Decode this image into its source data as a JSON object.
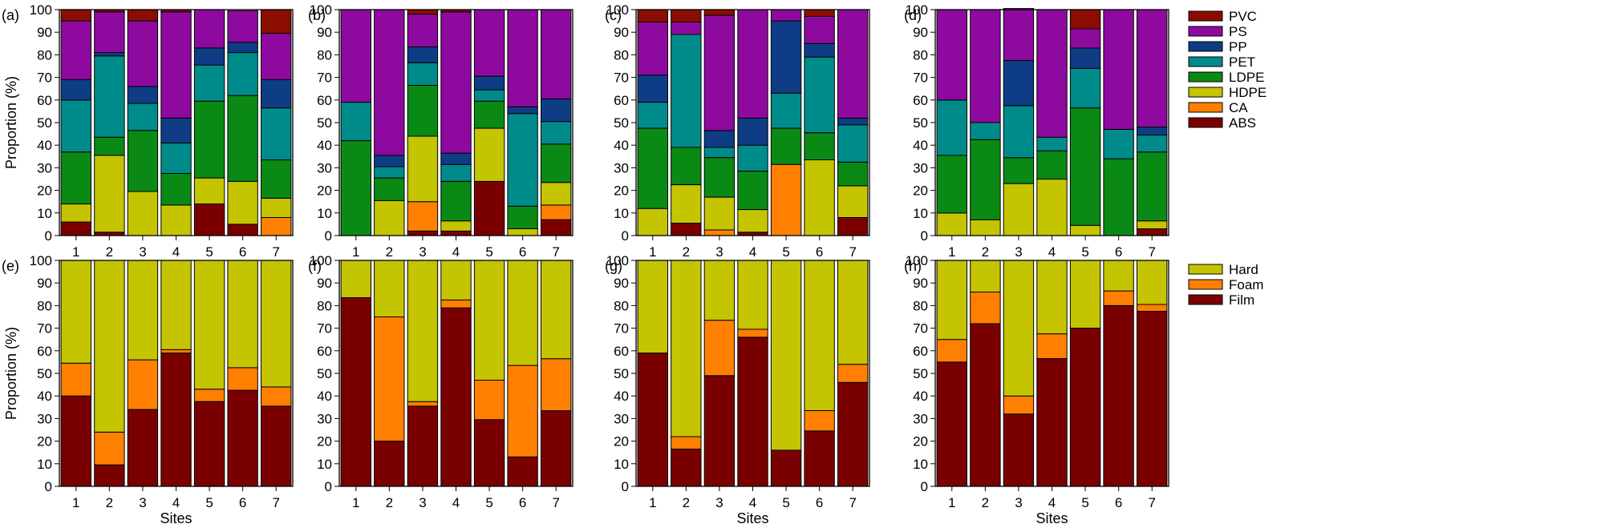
{
  "colors": {
    "PVC": "#8b0d00",
    "PS": "#8e0a9e",
    "PP": "#0f3d85",
    "PET": "#008b8b",
    "LDPE": "#0a8a14",
    "HDPE": "#c4c400",
    "CA": "#ff8000",
    "ABS": "#7a0000",
    "Hard": "#c4c400",
    "Foam": "#ff8000",
    "Film": "#7a0000"
  },
  "chart_data": [
    {
      "panel": "(a)",
      "type": "bar",
      "stacked": true,
      "categories": [
        "1",
        "2",
        "3",
        "4",
        "5",
        "6",
        "7"
      ],
      "xlabel": "",
      "ylabel": "Proportion (%)",
      "ylim": [
        0,
        100
      ],
      "yticks": [
        "0",
        "10",
        "20",
        "30",
        "40",
        "50",
        "60",
        "70",
        "80",
        "90",
        "100"
      ],
      "series": [
        {
          "name": "ABS",
          "values": [
            6,
            1.5,
            0,
            0,
            14,
            5,
            0
          ]
        },
        {
          "name": "CA",
          "values": [
            0,
            0,
            0,
            0,
            0,
            0,
            8
          ]
        },
        {
          "name": "HDPE",
          "values": [
            8,
            34,
            19.5,
            13.5,
            11.5,
            19,
            8.5
          ]
        },
        {
          "name": "LDPE",
          "values": [
            23,
            8,
            27,
            14,
            34,
            38,
            17
          ]
        },
        {
          "name": "PET",
          "values": [
            23,
            36,
            12,
            13.5,
            16,
            19,
            23
          ]
        },
        {
          "name": "PP",
          "values": [
            9,
            1.5,
            7.5,
            11,
            7.5,
            4.5,
            12.5
          ]
        },
        {
          "name": "PS",
          "values": [
            26,
            18,
            29,
            47,
            17,
            14,
            20.5
          ]
        },
        {
          "name": "PVC",
          "values": [
            5,
            1,
            5,
            1,
            0,
            0,
            10.5
          ]
        }
      ]
    },
    {
      "panel": "(b)",
      "type": "bar",
      "stacked": true,
      "categories": [
        "1",
        "2",
        "3",
        "4",
        "5",
        "6",
        "7"
      ],
      "xlabel": "",
      "ylabel": "",
      "ylim": [
        0,
        100
      ],
      "yticks": [
        "0",
        "10",
        "20",
        "30",
        "40",
        "50",
        "60",
        "70",
        "80",
        "90",
        "100"
      ],
      "series": [
        {
          "name": "ABS",
          "values": [
            0,
            0,
            2,
            2,
            24,
            0,
            7
          ]
        },
        {
          "name": "CA",
          "values": [
            0,
            0,
            13,
            0,
            0,
            0,
            6.5
          ]
        },
        {
          "name": "HDPE",
          "values": [
            0,
            15.5,
            29,
            4.5,
            23.5,
            3,
            10
          ]
        },
        {
          "name": "LDPE",
          "values": [
            42,
            10,
            22.5,
            17.5,
            12,
            10,
            17
          ]
        },
        {
          "name": "PET",
          "values": [
            17,
            5,
            10,
            7.5,
            5,
            41,
            10
          ]
        },
        {
          "name": "PP",
          "values": [
            0,
            5,
            7,
            5,
            6,
            3,
            10
          ]
        },
        {
          "name": "PS",
          "values": [
            41,
            64.5,
            14.5,
            62.5,
            29.5,
            43,
            39.5
          ]
        },
        {
          "name": "PVC",
          "values": [
            0,
            0,
            2,
            1,
            0,
            0,
            0
          ]
        }
      ]
    },
    {
      "panel": "(c)",
      "type": "bar",
      "stacked": true,
      "categories": [
        "1",
        "2",
        "3",
        "4",
        "5",
        "6",
        "7"
      ],
      "xlabel": "",
      "ylabel": "",
      "ylim": [
        0,
        100
      ],
      "yticks": [
        "0",
        "10",
        "20",
        "30",
        "40",
        "50",
        "60",
        "70",
        "80",
        "90",
        "100"
      ],
      "series": [
        {
          "name": "ABS",
          "values": [
            0,
            5.5,
            0,
            1.5,
            0,
            0,
            8
          ]
        },
        {
          "name": "CA",
          "values": [
            0,
            0,
            2.5,
            0,
            31.5,
            0,
            0
          ]
        },
        {
          "name": "HDPE",
          "values": [
            12,
            17,
            14.5,
            10,
            0,
            33.5,
            14
          ]
        },
        {
          "name": "LDPE",
          "values": [
            35.5,
            16.5,
            17.5,
            17,
            16,
            12,
            10.5
          ]
        },
        {
          "name": "PET",
          "values": [
            11.5,
            50,
            4.5,
            11.5,
            15.5,
            33.5,
            16.5
          ]
        },
        {
          "name": "PP",
          "values": [
            12,
            0,
            7.5,
            12,
            32,
            6,
            3
          ]
        },
        {
          "name": "PS",
          "values": [
            23.5,
            5.5,
            51,
            48,
            5,
            12,
            48
          ]
        },
        {
          "name": "PVC",
          "values": [
            5.5,
            5.5,
            2.5,
            0,
            0,
            3,
            0
          ]
        }
      ]
    },
    {
      "panel": "(d)",
      "type": "bar",
      "stacked": true,
      "categories": [
        "1",
        "2",
        "3",
        "4",
        "5",
        "6",
        "7"
      ],
      "xlabel": "",
      "ylabel": "",
      "ylim": [
        0,
        100
      ],
      "yticks": [
        "0",
        "10",
        "20",
        "30",
        "40",
        "50",
        "60",
        "70",
        "80",
        "90",
        "100"
      ],
      "series": [
        {
          "name": "ABS",
          "values": [
            0,
            0,
            0,
            0,
            0,
            0,
            3
          ]
        },
        {
          "name": "CA",
          "values": [
            0,
            0,
            0,
            0,
            0,
            0,
            0
          ]
        },
        {
          "name": "HDPE",
          "values": [
            10,
            7,
            23,
            25,
            4.5,
            0,
            3.5
          ]
        },
        {
          "name": "LDPE",
          "values": [
            25.5,
            35.5,
            11.5,
            12.5,
            52,
            34,
            30.5
          ]
        },
        {
          "name": "PET",
          "values": [
            24.5,
            7.5,
            23,
            6,
            17.5,
            13,
            7.5
          ]
        },
        {
          "name": "PP",
          "values": [
            0,
            0,
            20,
            0,
            9,
            0,
            3.5
          ]
        },
        {
          "name": "PS",
          "values": [
            40,
            50,
            23,
            56.5,
            8.5,
            53,
            52
          ]
        },
        {
          "name": "PVC",
          "values": [
            0,
            0,
            0,
            0,
            8.5,
            0,
            0
          ]
        }
      ]
    },
    {
      "panel": "(e)",
      "type": "bar",
      "stacked": true,
      "categories": [
        "1",
        "2",
        "3",
        "4",
        "5",
        "6",
        "7"
      ],
      "xlabel": "Sites",
      "ylabel": "Proportion (%)",
      "ylim": [
        0,
        100
      ],
      "yticks": [
        "0",
        "10",
        "20",
        "30",
        "40",
        "50",
        "60",
        "70",
        "80",
        "90",
        "100"
      ],
      "series": [
        {
          "name": "Film",
          "values": [
            40,
            9.5,
            34,
            59,
            37.5,
            42.5,
            35.5
          ]
        },
        {
          "name": "Foam",
          "values": [
            14.5,
            14.5,
            22,
            1.5,
            5.5,
            10,
            8.5
          ]
        },
        {
          "name": "Hard",
          "values": [
            45.5,
            76,
            44,
            39.5,
            57,
            47.5,
            56
          ]
        }
      ]
    },
    {
      "panel": "(f)",
      "type": "bar",
      "stacked": true,
      "categories": [
        "1",
        "2",
        "3",
        "4",
        "5",
        "6",
        "7"
      ],
      "xlabel": "",
      "ylabel": "",
      "ylim": [
        0,
        100
      ],
      "yticks": [
        "0",
        "10",
        "20",
        "30",
        "40",
        "50",
        "60",
        "70",
        "80",
        "90",
        "100"
      ],
      "series": [
        {
          "name": "Film",
          "values": [
            83.5,
            20,
            35.5,
            79,
            29.5,
            13,
            33.5
          ]
        },
        {
          "name": "Foam",
          "values": [
            0,
            55,
            2,
            3.5,
            17.5,
            40.5,
            23
          ]
        },
        {
          "name": "Hard",
          "values": [
            16.5,
            25,
            62.5,
            17.5,
            53,
            46.5,
            43.5
          ]
        }
      ]
    },
    {
      "panel": "(g)",
      "type": "bar",
      "stacked": true,
      "categories": [
        "1",
        "2",
        "3",
        "4",
        "5",
        "6",
        "7"
      ],
      "xlabel": "Sites",
      "ylabel": "",
      "ylim": [
        0,
        100
      ],
      "yticks": [
        "0",
        "10",
        "20",
        "30",
        "40",
        "50",
        "60",
        "70",
        "80",
        "90",
        "100"
      ],
      "series": [
        {
          "name": "Film",
          "values": [
            59,
            16.5,
            49,
            66,
            16,
            24.5,
            46
          ]
        },
        {
          "name": "Foam",
          "values": [
            0,
            5.5,
            24.5,
            3.5,
            0,
            9,
            8
          ]
        },
        {
          "name": "Hard",
          "values": [
            41,
            78,
            26.5,
            30.5,
            84,
            66.5,
            46
          ]
        }
      ]
    },
    {
      "panel": "(h)",
      "type": "bar",
      "stacked": true,
      "categories": [
        "1",
        "2",
        "3",
        "4",
        "5",
        "6",
        "7"
      ],
      "xlabel": "Sites",
      "ylabel": "",
      "ylim": [
        0,
        100
      ],
      "yticks": [
        "0",
        "10",
        "20",
        "30",
        "40",
        "50",
        "60",
        "70",
        "80",
        "90",
        "100"
      ],
      "series": [
        {
          "name": "Film",
          "values": [
            55,
            72,
            32,
            56.5,
            70,
            80,
            77.5
          ]
        },
        {
          "name": "Foam",
          "values": [
            10,
            14,
            8,
            11,
            0,
            6.5,
            3
          ]
        },
        {
          "name": "Hard",
          "values": [
            35,
            14,
            60,
            32.5,
            30,
            13.5,
            19.5
          ]
        }
      ]
    }
  ],
  "legends": [
    {
      "entries": [
        "PVC",
        "PS",
        "PP",
        "PET",
        "LDPE",
        "HDPE",
        "CA",
        "ABS"
      ]
    },
    {
      "entries": [
        "Hard",
        "Foam",
        "Film"
      ]
    }
  ]
}
